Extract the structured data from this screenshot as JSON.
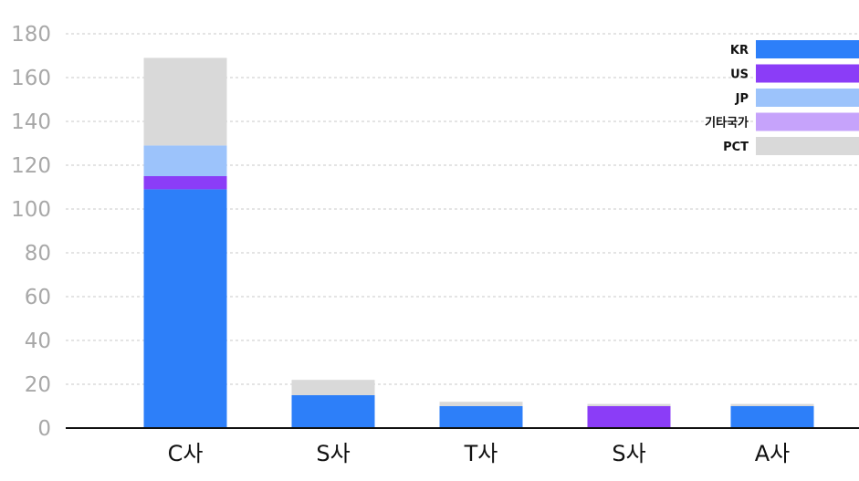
{
  "chart_data": {
    "type": "bar",
    "stacked": true,
    "categories": [
      "C사",
      "S사",
      "T사",
      "S사",
      "A사"
    ],
    "series": [
      {
        "name": "KR",
        "color": "#2d7ff9",
        "values": [
          109,
          15,
          10,
          0,
          10
        ]
      },
      {
        "name": "US",
        "color": "#8b3df7",
        "values": [
          6,
          0,
          0,
          10,
          0
        ]
      },
      {
        "name": "JP",
        "color": "#9cc3fb",
        "values": [
          14,
          0,
          0,
          0,
          0
        ]
      },
      {
        "name": "기타국가",
        "color": "#c6a3fb",
        "values": [
          0,
          0,
          0,
          0,
          0
        ]
      },
      {
        "name": "PCT",
        "color": "#d9d9d9",
        "values": [
          40,
          7,
          2,
          1,
          1
        ]
      }
    ],
    "yticks": [
      "0",
      "20",
      "40",
      "60",
      "80",
      "100",
      "120",
      "140",
      "160",
      "180"
    ],
    "ylim": [
      0,
      180
    ],
    "grid": true,
    "legend_position": "top-right",
    "title": "",
    "xlabel": "",
    "ylabel": ""
  }
}
